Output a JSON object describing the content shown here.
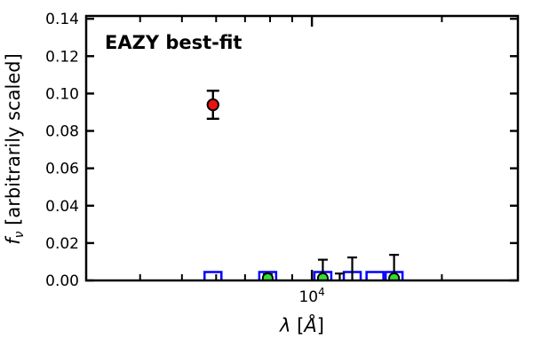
{
  "figure": {
    "annotation": {
      "text": "EAZY best-fit",
      "color": "#ff0000"
    },
    "xlabel": {
      "symbol": "λ",
      "open": " [",
      "angstrom": "Å",
      "close": "]"
    },
    "ylabel": {
      "symbol": "f",
      "subscript": "ν",
      "rest": " [arbitrarily scaled]"
    }
  },
  "chart_data": {
    "type": "scatter",
    "annotation": "EAZY best-fit",
    "x_scale": "log",
    "xlabel": "λ [Å]",
    "ylabel": "f_ν [arbitrarily scaled]",
    "xlim": [
      3000,
      30000
    ],
    "ylim": [
      0,
      0.14
    ],
    "grid": false,
    "legend": "none",
    "xticks": {
      "major": [
        {
          "value": 10000,
          "base": "10",
          "exponent": "4"
        }
      ],
      "minor": [
        4000,
        5000,
        6000,
        7000,
        8000,
        9000,
        20000,
        30000
      ]
    },
    "yticks": [
      {
        "value": 0.0,
        "label": "0.00"
      },
      {
        "value": 0.02,
        "label": "0.02"
      },
      {
        "value": 0.04,
        "label": "0.04"
      },
      {
        "value": 0.06,
        "label": "0.06"
      },
      {
        "value": 0.08,
        "label": "0.08"
      },
      {
        "value": 0.1,
        "label": "0.10"
      },
      {
        "value": 0.12,
        "label": "0.12"
      },
      {
        "value": 0.14,
        "label": "0.14"
      }
    ],
    "series": [
      {
        "name": "model-photometry",
        "marker": "square-open",
        "color": "#0000ff",
        "marker_size": 19,
        "line_width": 2.5,
        "points": [
          {
            "x": 5900,
            "y": 0
          },
          {
            "x": 7900,
            "y": 0
          },
          {
            "x": 10600,
            "y": 0
          },
          {
            "x": 12400,
            "y": 0
          },
          {
            "x": 14000,
            "y": 0
          },
          {
            "x": 15500,
            "y": 0
          }
        ]
      },
      {
        "name": "observed-photometry-detection",
        "marker": "circle",
        "color": "#ee1111",
        "edge_color": "#000000",
        "marker_radius": 6.2,
        "err_line_width": 2.4,
        "cap_half_width": 7,
        "points": [
          {
            "x": 5900,
            "y": 0.094,
            "yerr": 0.0075
          }
        ]
      },
      {
        "name": "observed-photometry-faint",
        "marker": "circle",
        "color": "#33dd33",
        "edge_color": "#000000",
        "marker_radius": 5.6,
        "err_line_width": 2.2,
        "cap_half_width": 5.5,
        "points": [
          {
            "x": 7900,
            "y": 0.0012,
            "yerr": 0.0021
          },
          {
            "x": 10600,
            "y": 0.0012,
            "yerr": 0.0099
          },
          {
            "x": 11600,
            "y": 0,
            "yerr": 0.0037,
            "marker_visible": false
          },
          {
            "x": 12400,
            "y": 0,
            "yerr": 0.0123,
            "marker_visible": false
          },
          {
            "x": 15500,
            "y": 0.0012,
            "yerr": 0.0125
          }
        ]
      }
    ]
  }
}
